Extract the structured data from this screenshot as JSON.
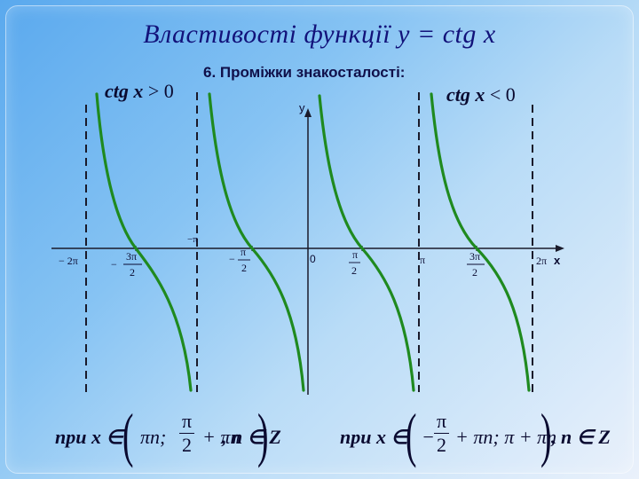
{
  "title": "Властивості функції y = ctg x",
  "subtitle": "6. Проміжки знакосталості:",
  "conditions": {
    "positive": {
      "fn": "ctg x",
      "rel": " > 0"
    },
    "negative": {
      "fn": "ctg x",
      "rel": " < 0"
    }
  },
  "axes": {
    "x_label": "x",
    "y_label": "y",
    "origin_label": "0"
  },
  "tick_labels": {
    "neg_two_pi": "− 2π",
    "neg_three_pi_half_num": "3π",
    "neg_three_pi_half_den": "2",
    "neg_three_pi_half_sign": "−",
    "neg_pi": "−π",
    "neg_pi_half_num": "π",
    "neg_pi_half_den": "2",
    "neg_pi_half_sign": "−",
    "pi_half_num": "π",
    "pi_half_den": "2",
    "pi": "π",
    "three_pi_half_num": "3π",
    "three_pi_half_den": "2",
    "two_pi": "2π"
  },
  "formulas": {
    "positive": {
      "prefix": "при x ∈",
      "left": "πn;",
      "frac_num": "π",
      "frac_den": "2",
      "right": "+ πn",
      "tail": ", n ∈ Z"
    },
    "negative": {
      "prefix": "при x ∈",
      "sign": "−",
      "frac_num": "π",
      "frac_den": "2",
      "middle": "+ πn; π + πn",
      "tail": ", n ∈ Z"
    }
  },
  "colors": {
    "curve": "#1f8a1f",
    "axis": "#1a1a2a",
    "asymptote": "#1a1a2a",
    "title": "#12127a"
  }
}
